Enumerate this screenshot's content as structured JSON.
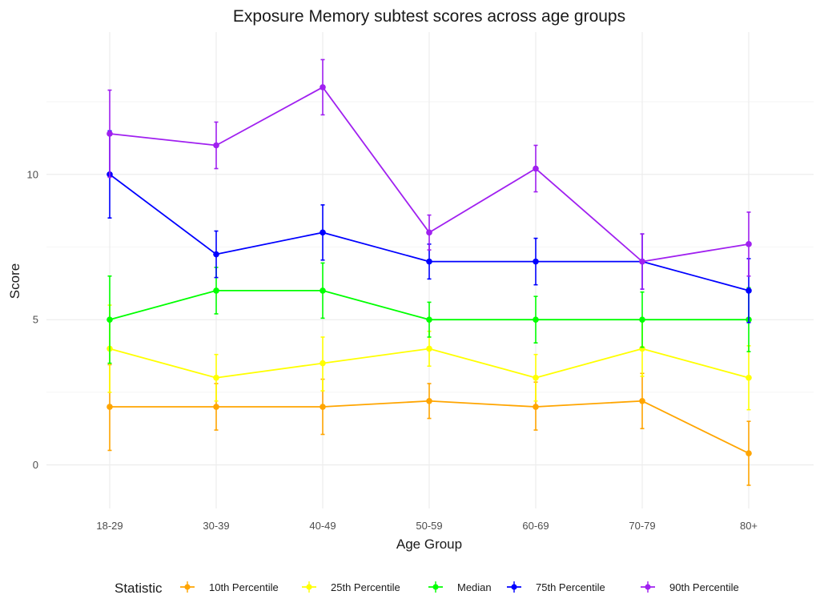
{
  "chart_data": {
    "type": "line",
    "title": "Exposure Memory subtest scores across age groups",
    "xlabel": "Age Group",
    "ylabel": "Score",
    "categories": [
      "18-29",
      "30-39",
      "40-49",
      "50-59",
      "60-69",
      "70-79",
      "80+"
    ],
    "ylim": [
      -1.5,
      14.9
    ],
    "yticks": [
      0,
      5,
      10
    ],
    "grid": true,
    "legend": {
      "title": "Statistic",
      "position": "bottom"
    },
    "series": [
      {
        "name": "10th Percentile",
        "color": "#FFA500",
        "values": [
          2.0,
          2.0,
          2.0,
          2.2,
          2.0,
          2.2,
          0.4
        ],
        "err_low": [
          0.5,
          1.2,
          1.05,
          1.6,
          1.2,
          1.25,
          -0.7
        ],
        "err_high": [
          3.45,
          2.8,
          2.95,
          2.8,
          2.85,
          3.15,
          1.5
        ]
      },
      {
        "name": "25th Percentile",
        "color": "#FFFF00",
        "values": [
          4.0,
          3.0,
          3.5,
          4.0,
          3.0,
          4.0,
          3.0
        ],
        "err_low": [
          2.5,
          2.2,
          2.55,
          3.4,
          2.2,
          3.05,
          1.9
        ],
        "err_high": [
          5.5,
          3.8,
          4.4,
          4.6,
          3.8,
          4.95,
          4.1
        ]
      },
      {
        "name": "Median",
        "color": "#00FF00",
        "values": [
          5.0,
          6.0,
          6.0,
          5.0,
          5.0,
          5.0,
          5.0
        ],
        "err_low": [
          3.5,
          5.2,
          5.05,
          4.4,
          4.2,
          4.05,
          3.9
        ],
        "err_high": [
          6.5,
          6.8,
          6.95,
          5.6,
          5.8,
          5.95,
          6.1
        ]
      },
      {
        "name": "75th Percentile",
        "color": "#0000FF",
        "values": [
          10.0,
          7.25,
          8.0,
          7.0,
          7.0,
          7.0,
          6.0
        ],
        "err_low": [
          8.5,
          6.45,
          7.05,
          6.4,
          6.2,
          6.05,
          4.9
        ],
        "err_high": [
          11.5,
          8.05,
          8.95,
          7.6,
          7.8,
          7.95,
          7.1
        ]
      },
      {
        "name": "90th Percentile",
        "color": "#A020F0",
        "values": [
          11.4,
          11.0,
          13.0,
          8.0,
          10.2,
          7.0,
          7.6
        ],
        "err_low": [
          9.9,
          10.2,
          12.05,
          7.4,
          9.4,
          6.05,
          6.5
        ],
        "err_high": [
          12.9,
          11.8,
          13.95,
          8.6,
          11.0,
          7.95,
          8.7
        ]
      }
    ]
  }
}
